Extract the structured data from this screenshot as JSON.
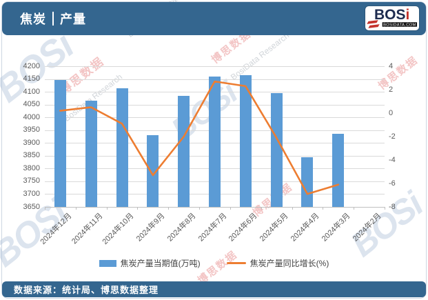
{
  "header": {
    "title_left": "焦炭",
    "title_right": "产量"
  },
  "brand": {
    "name_main": "BOS",
    "name_accent": "i",
    "domain": "BOSIDATA.COM"
  },
  "footer": {
    "source": "数据来源：统计局、博思数据整理"
  },
  "watermarks": {
    "cn": "博思数据",
    "en": "BosiData Research",
    "logo": "BOSi"
  },
  "theme": {
    "header_bg": "#34668F",
    "bar": "#5B9BD5",
    "line": "#ED7D31",
    "grid": "#D9D9D9",
    "axis_text": "#595959",
    "logo_navy": "#1D2B4F",
    "logo_red": "#C4332D"
  },
  "chart_data": {
    "type": "combo",
    "categories": [
      "2024年12月",
      "2024年11月",
      "2024年10月",
      "2024年9月",
      "2024年8月",
      "2024年7月",
      "2024年6月",
      "2024年5月",
      "2024年4月",
      "2024年3月",
      "2024年2月"
    ],
    "series": [
      {
        "name": "焦炭产量当期值(万吨)",
        "type": "bar",
        "axis": "left",
        "color": "#5B9BD5",
        "values": [
          4145,
          4065,
          4115,
          3930,
          4085,
          4160,
          4165,
          4095,
          3845,
          3935,
          null
        ]
      },
      {
        "name": "焦炭产量同比增长(%)",
        "type": "line",
        "axis": "right",
        "color": "#ED7D31",
        "values": [
          0.2,
          0.5,
          -0.9,
          -5.3,
          -2.0,
          2.7,
          2.3,
          -2.1,
          -6.9,
          -6.1,
          null
        ]
      }
    ],
    "axes": {
      "left": {
        "min": 3650,
        "max": 4200,
        "step": 50
      },
      "right": {
        "min": -8,
        "max": 4,
        "step": 2
      }
    },
    "grid": true,
    "legend_position": "bottom"
  }
}
